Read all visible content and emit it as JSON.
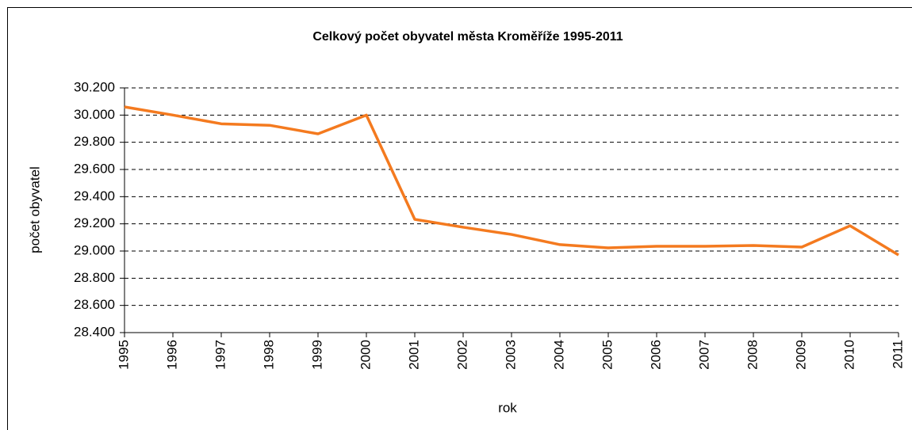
{
  "chart_data": {
    "type": "line",
    "title": "Celkový počet obyvatel města Kroměříže 1995-2011",
    "x_label": "rok",
    "y_label": "počet obyvatel",
    "categories": [
      "1995",
      "1996",
      "1997",
      "1998",
      "1999",
      "2000",
      "2001",
      "2002",
      "2003",
      "2004",
      "2005",
      "2006",
      "2007",
      "2008",
      "2009",
      "2010",
      "2011"
    ],
    "series": [
      {
        "name": "počet obyvatel",
        "color": "#f47a1f",
        "values": [
          30060,
          30000,
          29936,
          29925,
          29862,
          30000,
          29233,
          29175,
          29122,
          29047,
          29023,
          29035,
          29035,
          29041,
          29029,
          29186,
          28971
        ]
      }
    ],
    "ylim": [
      28400,
      30200
    ],
    "yticks": [
      {
        "value": 28400,
        "label": "28.400"
      },
      {
        "value": 28600,
        "label": "28.600"
      },
      {
        "value": 28800,
        "label": "28.800"
      },
      {
        "value": 29000,
        "label": "29.000"
      },
      {
        "value": 29200,
        "label": "29.200"
      },
      {
        "value": 29400,
        "label": "29.400"
      },
      {
        "value": 29600,
        "label": "29.600"
      },
      {
        "value": 29800,
        "label": "29.800"
      },
      {
        "value": 30000,
        "label": "30.000"
      },
      {
        "value": 30200,
        "label": "30.200"
      }
    ],
    "grid": true
  }
}
